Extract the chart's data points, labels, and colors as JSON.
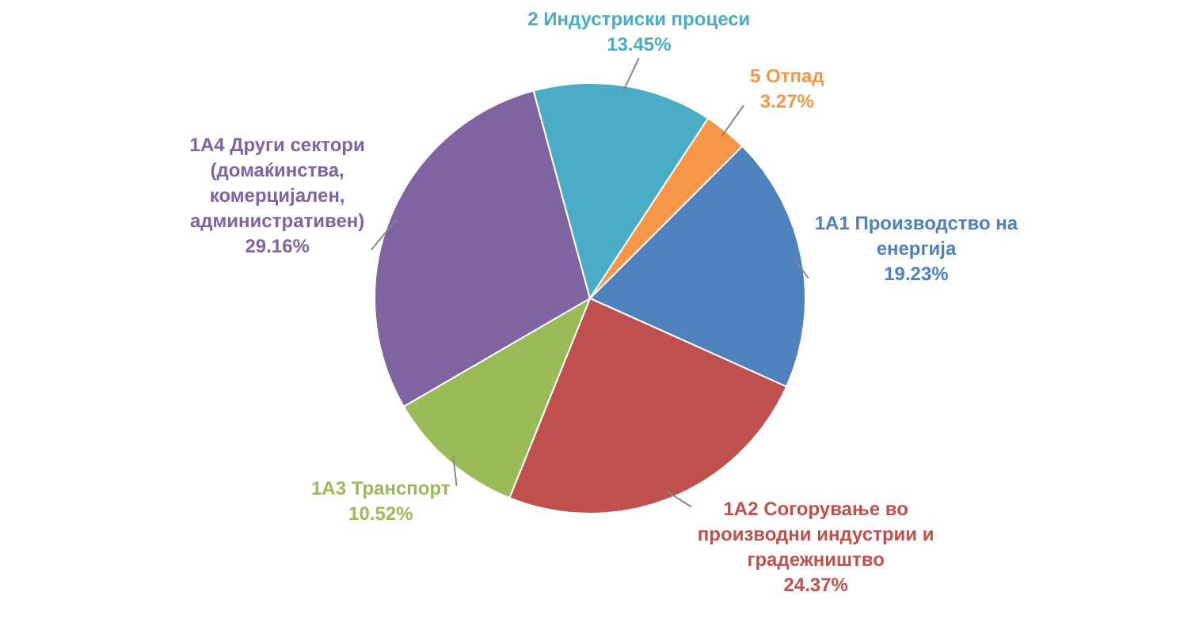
{
  "chart_data": {
    "type": "pie",
    "categories": [
      "1А1 Производство  на енергија",
      "1А2 Согорување  во производни  индустрии и градежништво",
      "1А3 Транспорт",
      "1А4 Други сектори (домаќинства, комерцијален, административен)",
      "2 Индустриски  процеси",
      "5 Отпад"
    ],
    "values": [
      19.23,
      24.37,
      10.52,
      29.16,
      13.45,
      3.27
    ],
    "value_labels": [
      "19.23%",
      "24.37%",
      "10.52%",
      "29.16%",
      "13.45%",
      "3.27%"
    ],
    "colors": [
      "#4f81bd",
      "#c0504d",
      "#9bbb59",
      "#8064a2",
      "#4bacc6",
      "#f79646"
    ],
    "legend": false
  }
}
